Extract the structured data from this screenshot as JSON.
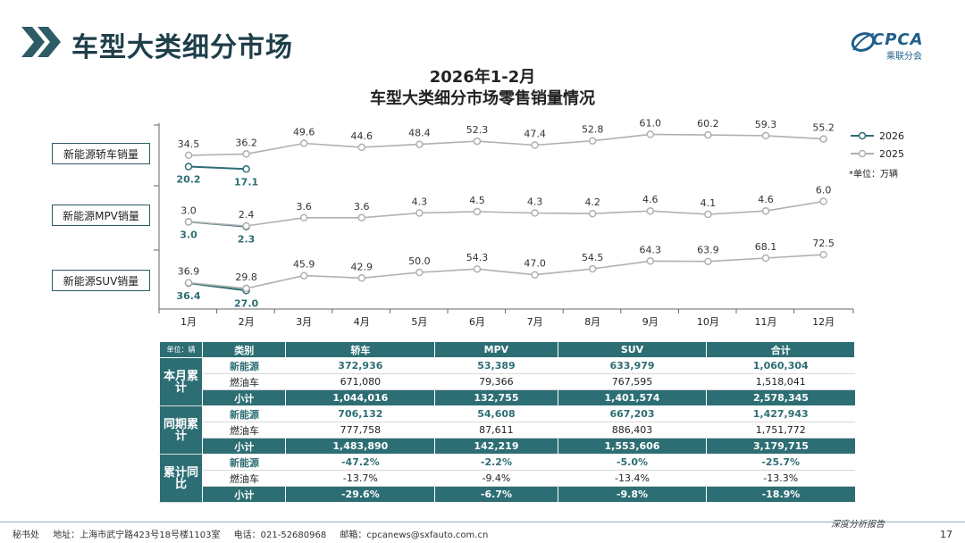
{
  "header": {
    "title": "车型大类细分市场",
    "logo_text": "CPCA",
    "logo_sub": "乘联分会"
  },
  "chart_data": {
    "type": "line",
    "title": "2026年1-2月",
    "subtitle": "车型大类细分市场零售销量情况",
    "categories": [
      "1月",
      "2月",
      "3月",
      "4月",
      "5月",
      "6月",
      "7月",
      "8月",
      "9月",
      "10月",
      "11月",
      "12月"
    ],
    "legend": [
      "2026",
      "2025"
    ],
    "unit_note": "*单位：万辆",
    "panels": [
      {
        "label": "新能源轿车销量",
        "series": [
          {
            "name": "2026",
            "values": [
              20.2,
              17.1
            ]
          },
          {
            "name": "2025",
            "values": [
              34.5,
              36.2,
              49.6,
              44.6,
              48.4,
              52.3,
              47.4,
              52.8,
              61.0,
              60.2,
              59.3,
              55.2
            ]
          }
        ]
      },
      {
        "label": "新能源MPV销量",
        "series": [
          {
            "name": "2026",
            "values": [
              3.0,
              2.3
            ]
          },
          {
            "name": "2025",
            "values": [
              3.0,
              2.4,
              3.6,
              3.6,
              4.3,
              4.5,
              4.3,
              4.2,
              4.6,
              4.1,
              4.6,
              6.0
            ]
          }
        ]
      },
      {
        "label": "新能源SUV销量",
        "series": [
          {
            "name": "2026",
            "values": [
              36.4,
              27.0
            ]
          },
          {
            "name": "2025",
            "values": [
              36.9,
              29.8,
              45.9,
              42.9,
              50.0,
              54.3,
              47.0,
              54.5,
              64.3,
              63.9,
              68.1,
              72.5
            ]
          }
        ]
      }
    ],
    "colors": {
      "2026": "#2d6e74",
      "2025": "#b0b0b0"
    }
  },
  "table": {
    "unit": "单位：辆",
    "headers": [
      "类别",
      "轿车",
      "MPV",
      "SUV",
      "合计"
    ],
    "groups": [
      {
        "name": "本月累计",
        "rows": [
          {
            "label": "新能源",
            "values": [
              "372,936",
              "53,389",
              "633,979",
              "1,060,304"
            ]
          },
          {
            "label": "燃油车",
            "values": [
              "671,080",
              "79,366",
              "767,595",
              "1,518,041"
            ]
          },
          {
            "label": "小计",
            "values": [
              "1,044,016",
              "132,755",
              "1,401,574",
              "2,578,345"
            ]
          }
        ]
      },
      {
        "name": "同期累计",
        "rows": [
          {
            "label": "新能源",
            "values": [
              "706,132",
              "54,608",
              "667,203",
              "1,427,943"
            ]
          },
          {
            "label": "燃油车",
            "values": [
              "777,758",
              "87,611",
              "886,403",
              "1,751,772"
            ]
          },
          {
            "label": "小计",
            "values": [
              "1,483,890",
              "142,219",
              "1,553,606",
              "3,179,715"
            ]
          }
        ]
      },
      {
        "name": "累计同比",
        "rows": [
          {
            "label": "新能源",
            "values": [
              "-47.2%",
              "-2.2%",
              "-5.0%",
              "-25.7%"
            ]
          },
          {
            "label": "燃油车",
            "values": [
              "-13.7%",
              "-9.4%",
              "-13.4%",
              "-13.3%"
            ]
          },
          {
            "label": "小计",
            "values": [
              "-29.6%",
              "-6.7%",
              "-9.8%",
              "-18.9%"
            ]
          }
        ]
      }
    ]
  },
  "footer": {
    "secretariat": "秘书处",
    "address": "地址：上海市武宁路423号18号楼1103室",
    "phone": "电话：021-52680968",
    "email": "邮箱：cpcanews@sxfauto.com.cn",
    "report_label": "深度分析报告",
    "page": "17"
  }
}
